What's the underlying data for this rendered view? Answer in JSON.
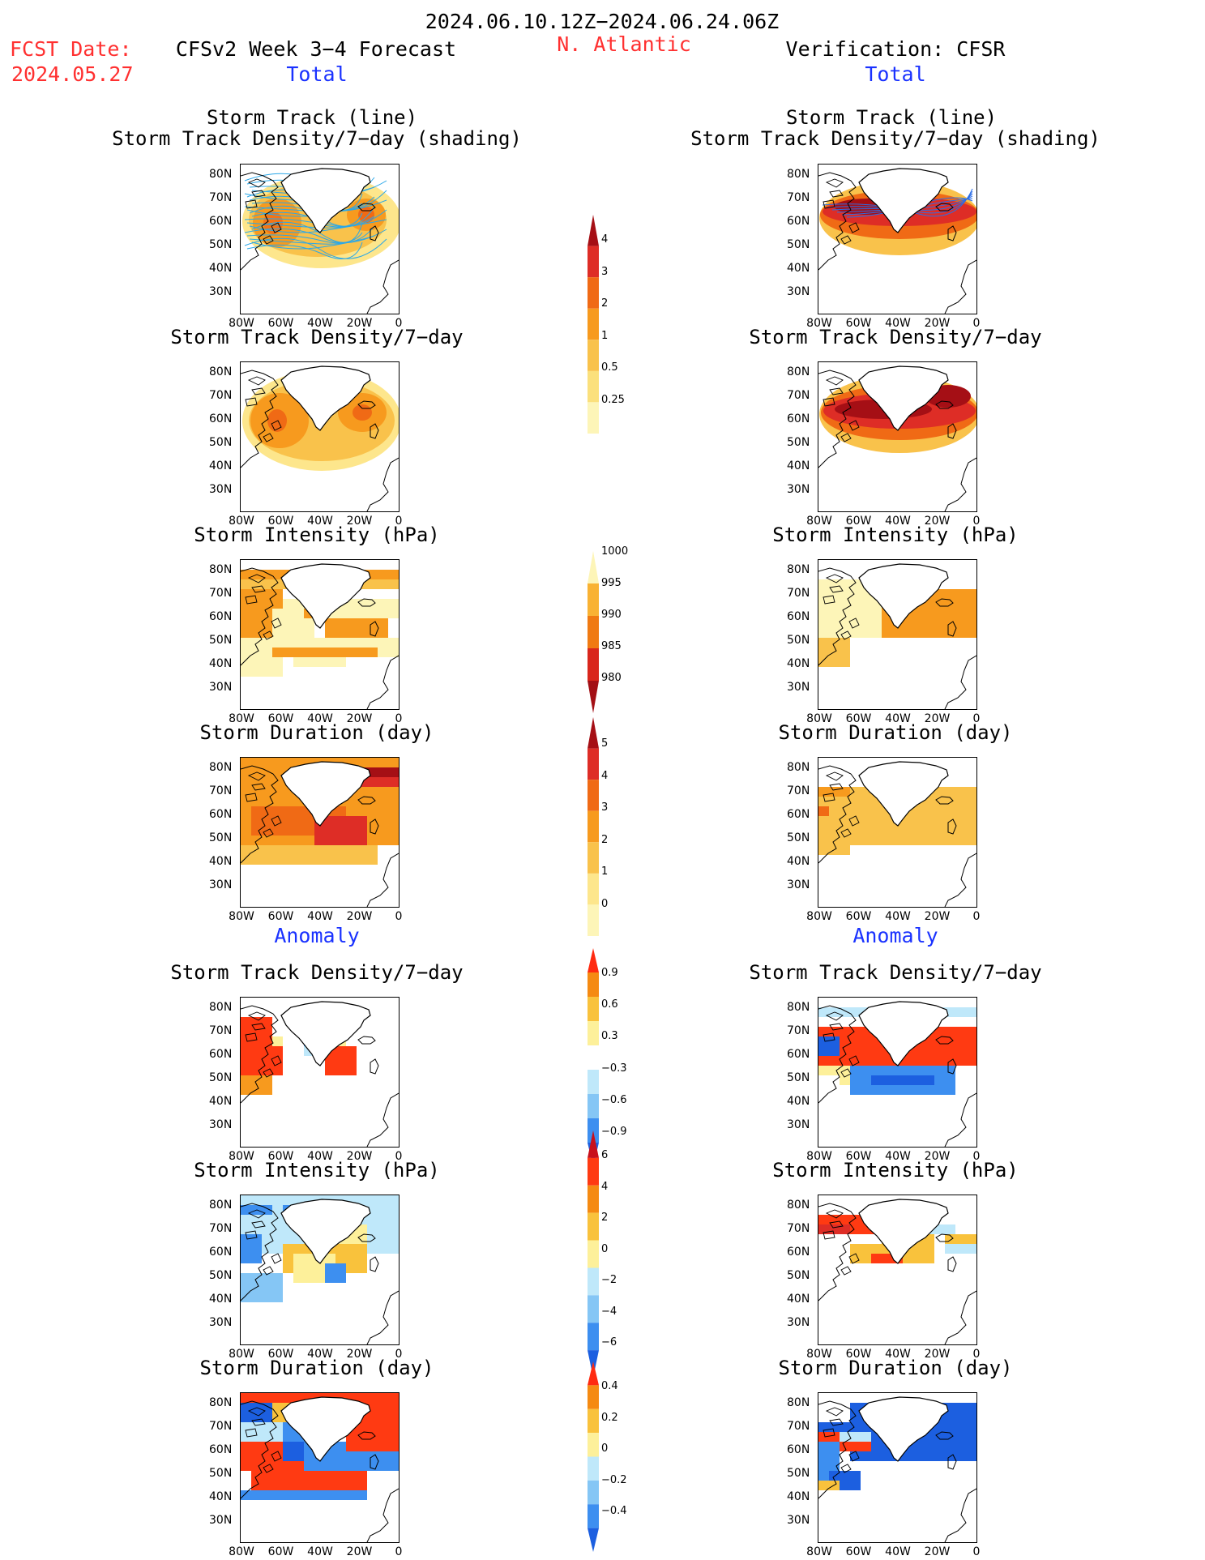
{
  "header": {
    "period": "2024.06.10.12Z−2024.06.24.06Z",
    "fcst_label": "FCST Date:",
    "fcst_date": "2024.05.27",
    "left_title": "CFSv2 Week 3−4 Forecast",
    "region": "N. Atlantic",
    "right_title": "Verification: CFSR",
    "left_total": "Total",
    "right_total": "Total",
    "left_anomaly": "Anomaly",
    "right_anomaly": "Anomaly"
  },
  "panel_titles": {
    "track_line": "Storm Track (line)",
    "track_shading": "Storm Track Density/7−day (shading)",
    "density": "Storm Track Density/7−day",
    "intensity": "Storm Intensity (hPa)",
    "duration": "Storm Duration (day)"
  },
  "axes": {
    "lat_labels": [
      "80N",
      "70N",
      "60N",
      "50N",
      "40N",
      "30N"
    ],
    "lon_labels": [
      "80W",
      "60W",
      "40W",
      "20W",
      "0"
    ]
  },
  "colorbars": [
    {
      "id": "density",
      "labels": [
        "4",
        "3",
        "2",
        "1",
        "0.5",
        "0.25"
      ],
      "colors": [
        "#a50f15",
        "#de2d26",
        "#f06a15",
        "#f79a1e",
        "#f9c24b",
        "#fbe07c",
        "#fdf5b8"
      ],
      "open_bottom": true
    },
    {
      "id": "intensity",
      "labels": [
        "1000",
        "995",
        "990",
        "985",
        "980"
      ],
      "colors": [
        "#fdf5b8",
        "#f9b233",
        "#f07a12",
        "#d9261c",
        "#a30f15"
      ],
      "open_top": true
    },
    {
      "id": "duration",
      "labels": [
        "5",
        "4",
        "3",
        "2",
        "1",
        "0"
      ],
      "colors": [
        "#a50f15",
        "#de2d26",
        "#f06a15",
        "#f79a1e",
        "#f9c24b",
        "#fde68c",
        "#fdf5b8"
      ],
      "open_bottom": true
    },
    {
      "id": "density-anom",
      "labels": [
        "0.9",
        "0.6",
        "0.3",
        "−0.3",
        "−0.6",
        "−0.9"
      ],
      "colors": [
        "#ff2a10",
        "#f58a12",
        "#f9c23c",
        "#fdf09a",
        "#ffffff",
        "#bfe8fa",
        "#85c6f5",
        "#3d8ff0",
        "#1c5fe0"
      ]
    },
    {
      "id": "intensity-anom",
      "labels": [
        "6",
        "4",
        "2",
        "0",
        "−2",
        "−4",
        "−6"
      ],
      "colors": [
        "#c8101c",
        "#ff3a12",
        "#f58a12",
        "#f9c23c",
        "#fdf09a",
        "#bfe8fa",
        "#85c6f5",
        "#3d8ff0",
        "#1c5fe0"
      ]
    },
    {
      "id": "duration-anom",
      "labels": [
        "0.4",
        "0.2",
        "0",
        "−0.2",
        "−0.4"
      ],
      "colors": [
        "#ff2a10",
        "#f58a12",
        "#f9c23c",
        "#fdf09a",
        "#bfe8fa",
        "#85c6f5",
        "#3d8ff0",
        "#1c5fe0"
      ]
    }
  ]
}
